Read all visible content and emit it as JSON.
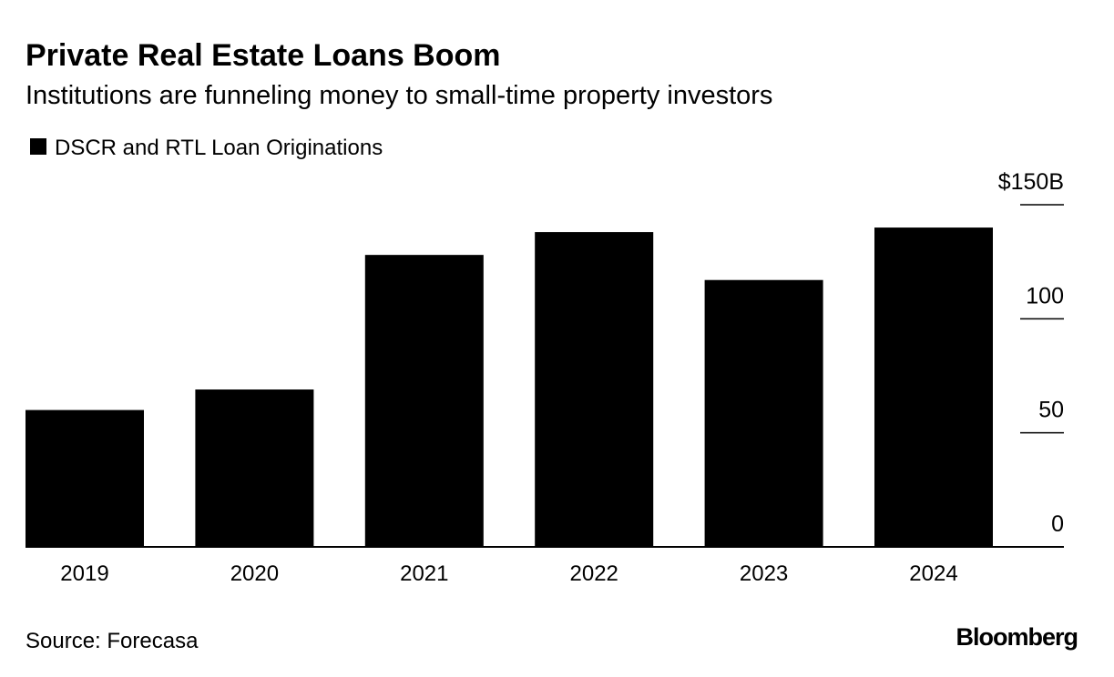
{
  "chart_data": {
    "type": "bar",
    "title": "Private Real Estate Loans Boom",
    "subtitle": "Institutions are funneling money to small-time property investors",
    "categories": [
      "2019",
      "2020",
      "2021",
      "2022",
      "2023",
      "2024"
    ],
    "series": [
      {
        "name": "DSCR and RTL Loan Originations",
        "color": "#000000",
        "values": [
          60,
          69,
          128,
          138,
          117,
          140
        ]
      }
    ],
    "ylim": [
      0,
      150
    ],
    "yticks": [
      0,
      50,
      100,
      {
        "value": 150,
        "label": "$150B"
      }
    ],
    "legend": "top-left",
    "source": "Source: Forecasa",
    "credit": "Bloomberg"
  }
}
